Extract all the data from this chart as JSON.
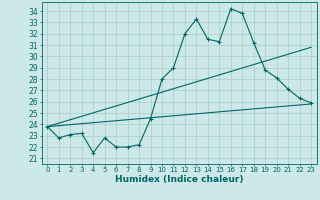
{
  "bg_color": "#cce8e8",
  "grid_color": "#aacccc",
  "line_color": "#006666",
  "xlabel": "Humidex (Indice chaleur)",
  "xlabel_fontsize": 6.5,
  "ytick_fontsize": 5.5,
  "xtick_fontsize": 5.0,
  "ylim": [
    20.5,
    34.8
  ],
  "xlim": [
    -0.5,
    23.5
  ],
  "yticks": [
    21,
    22,
    23,
    24,
    25,
    26,
    27,
    28,
    29,
    30,
    31,
    32,
    33,
    34
  ],
  "xticks": [
    0,
    1,
    2,
    3,
    4,
    5,
    6,
    7,
    8,
    9,
    10,
    11,
    12,
    13,
    14,
    15,
    16,
    17,
    18,
    19,
    20,
    21,
    22,
    23
  ],
  "line1_x": [
    0,
    1,
    2,
    3,
    4,
    5,
    6,
    7,
    8,
    9,
    10,
    11,
    12,
    13,
    14,
    15,
    16,
    17,
    18,
    19,
    20,
    21,
    22,
    23
  ],
  "line1_y": [
    23.8,
    22.8,
    23.1,
    23.2,
    21.5,
    22.8,
    22.0,
    22.0,
    22.2,
    24.5,
    28.0,
    29.0,
    32.0,
    33.3,
    31.5,
    31.3,
    34.2,
    33.8,
    31.2,
    28.8,
    28.1,
    27.1,
    26.3,
    25.9
  ],
  "line2_x": [
    0,
    23
  ],
  "line2_y": [
    23.8,
    30.8
  ],
  "line3_x": [
    0,
    23
  ],
  "line3_y": [
    23.8,
    25.8
  ],
  "figwidth": 3.2,
  "figheight": 2.0,
  "dpi": 100
}
